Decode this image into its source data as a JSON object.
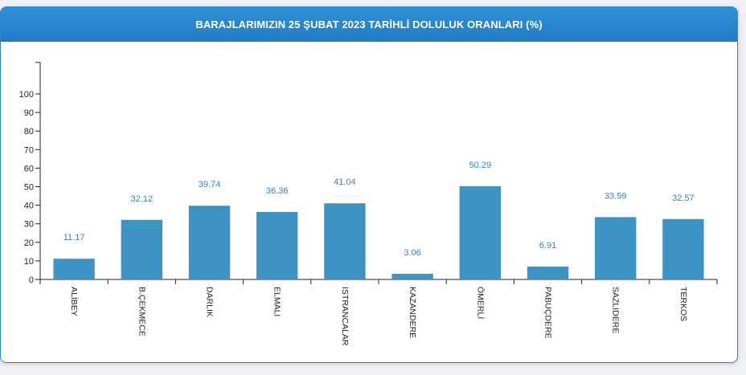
{
  "panel": {
    "title": "BARAJLARIMIZIN 25 ŞUBAT 2023 TARİHLİ DOLULUK ORANLARI (%)"
  },
  "colors": {
    "header": "#2a86cf",
    "bar": "#3c93c4",
    "data_label": "#3d7fb8"
  },
  "chart_data": {
    "type": "bar",
    "title": "BARAJLARIMIZIN 25 ŞUBAT 2023 TARİHLİ DOLULUK ORANLARI (%)",
    "xlabel": "",
    "ylabel": "",
    "categories": [
      "ALİBEY",
      "B.ÇEKMECE",
      "DARLIK",
      "ELMALI",
      "ISTRANCALAR",
      "KAZANDERE",
      "ÖMERLİ",
      "PABUÇDERE",
      "SAZLIDERE",
      "TERKOS"
    ],
    "values": [
      11.17,
      32.12,
      39.74,
      36.36,
      41.04,
      3.06,
      50.29,
      6.91,
      33.59,
      32.57
    ],
    "value_labels": [
      "11.17",
      "32.12",
      "39.74",
      "36.36",
      "41.04",
      "3.06",
      "50.29",
      "6.91",
      "33.59",
      "32.57"
    ],
    "yticks": [
      "0",
      "10",
      "20",
      "30",
      "40",
      "50",
      "60",
      "70",
      "80",
      "90",
      "100"
    ],
    "ylim": [
      0,
      117
    ],
    "grid": false,
    "legend": "none"
  }
}
